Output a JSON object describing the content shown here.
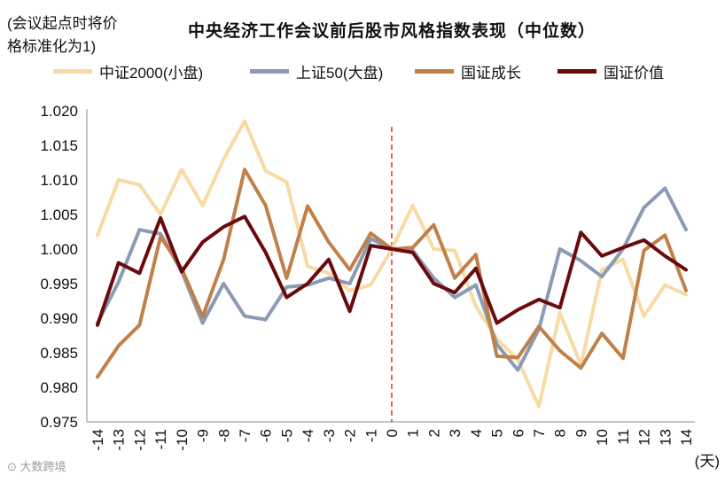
{
  "note": {
    "line1": "(会议起点时将价",
    "line2": "格标准化为1)"
  },
  "watermark": "大数跨境",
  "chart_data": {
    "type": "line",
    "title": "中央经济工作会议前后股市风格指数表现（中位数）",
    "xunit": "(天)",
    "x": [
      -14,
      -13,
      -12,
      -11,
      -10,
      -9,
      -8,
      -7,
      -6,
      -5,
      -4,
      -3,
      -2,
      -1,
      0,
      1,
      2,
      3,
      4,
      5,
      6,
      7,
      8,
      9,
      10,
      11,
      12,
      13,
      14
    ],
    "ylim": [
      0.975,
      1.02
    ],
    "yticks": [
      "1.020",
      "1.015",
      "1.010",
      "1.005",
      "1.000",
      "0.995",
      "0.990",
      "0.985",
      "0.980",
      "0.975"
    ],
    "event_line_x": 0,
    "grid": false,
    "legend_position": "top",
    "series": [
      {
        "name": "中证2000(小盘)",
        "color": "#f8dba4",
        "values": [
          1.002,
          1.01,
          1.0093,
          1.005,
          1.0115,
          1.0063,
          1.013,
          1.0185,
          1.0113,
          1.0097,
          0.9975,
          0.9965,
          0.994,
          0.9948,
          1.0,
          1.0063,
          1.0,
          0.9998,
          0.9917,
          0.987,
          0.984,
          0.9772,
          0.9908,
          0.9832,
          0.997,
          0.9985,
          0.9903,
          0.9948,
          0.9934
        ]
      },
      {
        "name": "上证50(大盘)",
        "color": "#8a9bb3",
        "values": [
          0.9893,
          0.9952,
          1.0028,
          1.0022,
          0.9968,
          0.9893,
          0.995,
          0.9903,
          0.9898,
          0.9945,
          0.9948,
          0.9958,
          0.995,
          1.0015,
          1.0,
          0.9998,
          0.9958,
          0.993,
          0.9948,
          0.9862,
          0.9825,
          0.9884,
          1.0,
          0.9983,
          0.996,
          1.0,
          1.006,
          1.0088,
          1.0028
        ]
      },
      {
        "name": "国证成长",
        "color": "#c0804a",
        "values": [
          0.9815,
          0.986,
          0.989,
          1.0018,
          0.9972,
          0.9902,
          0.9985,
          1.0115,
          1.0063,
          0.9958,
          1.0062,
          1.001,
          0.997,
          1.0023,
          1.0,
          1.0002,
          1.0035,
          0.9958,
          0.9992,
          0.9845,
          0.9843,
          0.9888,
          0.9853,
          0.9828,
          0.9878,
          0.9842,
          0.9998,
          1.002,
          0.994
        ]
      },
      {
        "name": "国证价值",
        "color": "#6b0a0c",
        "values": [
          0.989,
          0.998,
          0.9965,
          1.0045,
          0.9967,
          1.001,
          1.0032,
          1.0047,
          0.9995,
          0.993,
          0.995,
          0.9985,
          0.991,
          1.0005,
          1.0,
          0.9995,
          0.995,
          0.9937,
          0.9972,
          0.9893,
          0.9912,
          0.9927,
          0.9915,
          1.0024,
          0.999,
          1.0002,
          1.0013,
          0.999,
          0.997
        ]
      }
    ]
  }
}
